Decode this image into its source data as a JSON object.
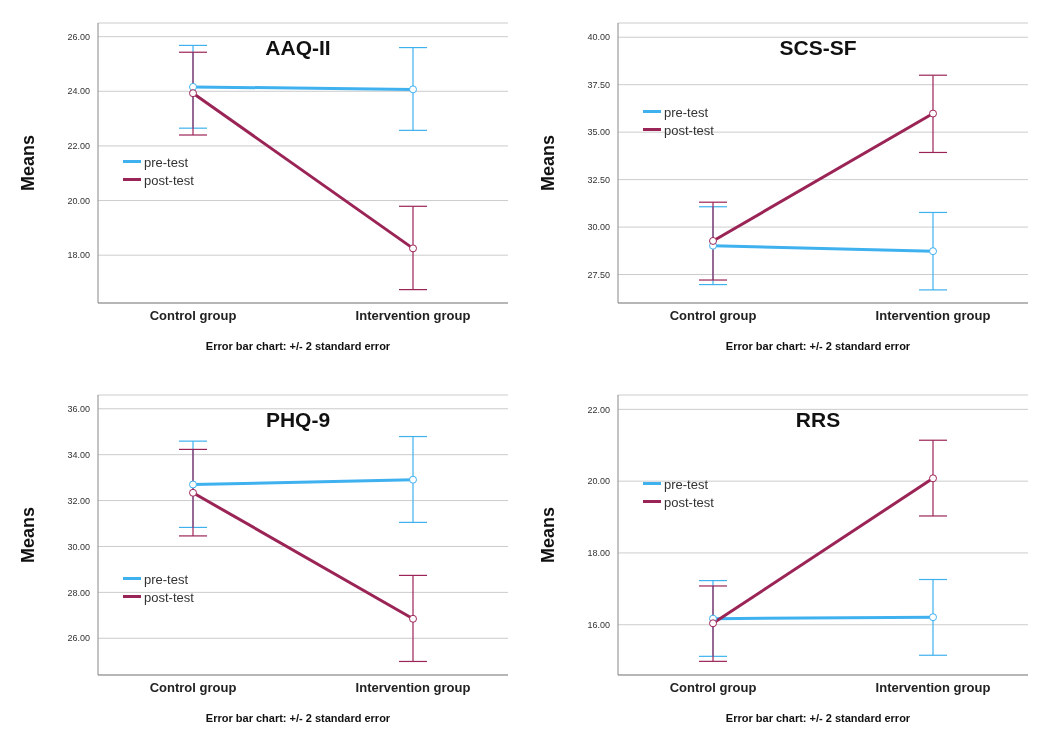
{
  "chart_data": [
    {
      "type": "line",
      "title": "AAQ-II",
      "xlabel": "Error bar chart: +/- 2 standard error",
      "ylabel": "Means",
      "categories": [
        "Control group",
        "Intervention group"
      ],
      "ylim": [
        16.25,
        26.5
      ],
      "yticks": [
        {
          "value": 18,
          "label": "18.00"
        },
        {
          "value": 20,
          "label": "20.00"
        },
        {
          "value": 22,
          "label": "22.00"
        },
        {
          "value": 24,
          "label": "24.00"
        },
        {
          "value": 26,
          "label": "26.00"
        }
      ],
      "grid": "y",
      "legend": "left",
      "marker": "circle",
      "series": [
        {
          "name": "pre-test",
          "color": "#3fb1ef",
          "values": [
            24.16,
            24.07
          ],
          "errors": [
            [
              22.65,
              25.68
            ],
            [
              22.57,
              25.6
            ]
          ]
        },
        {
          "name": "post-test",
          "color": "#9b2456",
          "values": [
            23.93,
            18.25
          ],
          "errors": [
            [
              22.4,
              25.43
            ],
            [
              16.74,
              19.79
            ]
          ]
        }
      ]
    },
    {
      "type": "line",
      "title": "SCS-SF",
      "xlabel": "Error bar chart: +/- 2 standard error",
      "ylabel": "Means",
      "categories": [
        "Control group",
        "Intervention group"
      ],
      "ylim": [
        26,
        40.75
      ],
      "yticks": [
        {
          "value": 27.5,
          "label": "27.50"
        },
        {
          "value": 30,
          "label": "30.00"
        },
        {
          "value": 32.5,
          "label": "32.50"
        },
        {
          "value": 35,
          "label": "35.00"
        },
        {
          "value": 37.5,
          "label": "37.50"
        },
        {
          "value": 40,
          "label": "40.00"
        }
      ],
      "grid": "y",
      "legend": "top left",
      "marker": "circle",
      "series": [
        {
          "name": "pre-test",
          "color": "#3fb1ef",
          "values": [
            29.02,
            28.73
          ],
          "errors": [
            [
              26.97,
              31.07
            ],
            [
              26.69,
              30.77
            ]
          ]
        },
        {
          "name": "post-test",
          "color": "#9b2456",
          "values": [
            29.27,
            35.98
          ],
          "errors": [
            [
              27.21,
              31.31
            ],
            [
              33.93,
              38.0
            ]
          ]
        }
      ]
    },
    {
      "type": "line",
      "title": "PHQ-9",
      "xlabel": "Error bar chart: +/- 2 standard error",
      "ylabel": "Means",
      "categories": [
        "Control group",
        "Intervention group"
      ],
      "ylim": [
        24.4,
        36.6
      ],
      "yticks": [
        {
          "value": 26,
          "label": "26.00"
        },
        {
          "value": 28,
          "label": "28.00"
        },
        {
          "value": 30,
          "label": "30.00"
        },
        {
          "value": 32,
          "label": "32.00"
        },
        {
          "value": 34,
          "label": "34.00"
        },
        {
          "value": 36,
          "label": "36.00"
        }
      ],
      "grid": "y",
      "legend": "bottom left",
      "marker": "circle",
      "series": [
        {
          "name": "pre-test",
          "color": "#3fb1ef",
          "values": [
            32.7,
            32.91
          ],
          "errors": [
            [
              30.83,
              34.59
            ],
            [
              31.05,
              34.79
            ]
          ]
        },
        {
          "name": "post-test",
          "color": "#9b2456",
          "values": [
            32.34,
            26.85
          ],
          "errors": [
            [
              30.46,
              34.23
            ],
            [
              24.99,
              28.74
            ]
          ]
        }
      ]
    },
    {
      "type": "line",
      "title": "RRS",
      "xlabel": "Error bar chart: +/- 2 standard error",
      "ylabel": "Means",
      "categories": [
        "Control group",
        "Intervention group"
      ],
      "ylim": [
        14.6,
        22.4
      ],
      "yticks": [
        {
          "value": 16,
          "label": "16.00"
        },
        {
          "value": 18,
          "label": "18.00"
        },
        {
          "value": 20,
          "label": "20.00"
        },
        {
          "value": 22,
          "label": "22.00"
        }
      ],
      "grid": "y",
      "legend": "top left",
      "marker": "circle",
      "series": [
        {
          "name": "pre-test",
          "color": "#3fb1ef",
          "values": [
            16.17,
            16.21
          ],
          "errors": [
            [
              15.12,
              17.23
            ],
            [
              15.15,
              17.26
            ]
          ]
        },
        {
          "name": "post-test",
          "color": "#9b2456",
          "values": [
            16.04,
            20.08
          ],
          "errors": [
            [
              14.98,
              17.08
            ],
            [
              19.03,
              21.14
            ]
          ]
        }
      ]
    }
  ]
}
